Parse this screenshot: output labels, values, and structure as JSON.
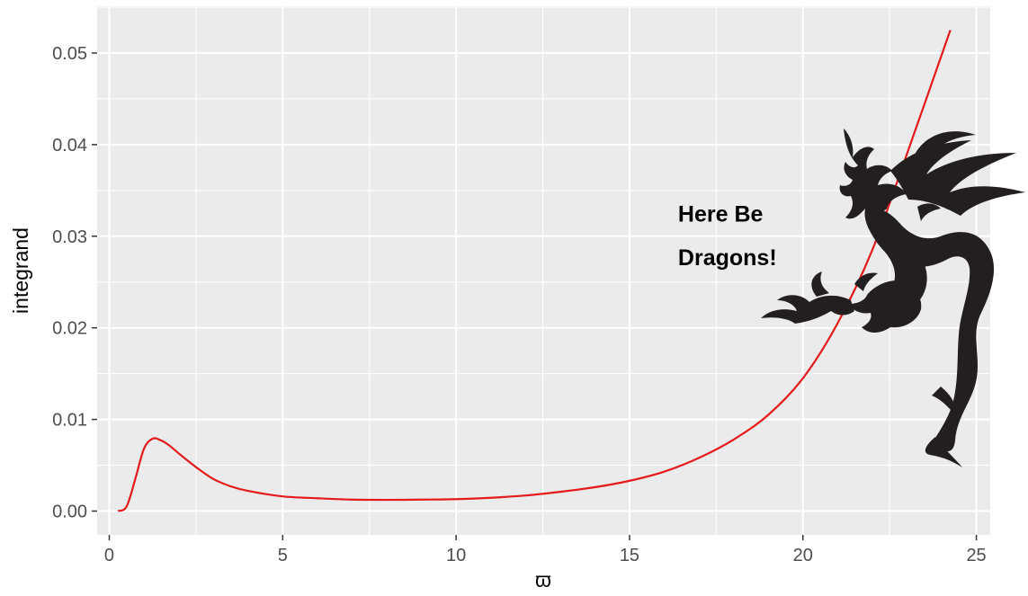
{
  "chart_data": {
    "type": "line",
    "title": "",
    "xlabel": "ϖ",
    "ylabel": "integrand",
    "xlim": [
      -0.35,
      25.4
    ],
    "ylim": [
      -0.0026,
      0.0551
    ],
    "x_ticks": [
      0,
      5,
      10,
      15,
      20,
      25
    ],
    "x_tick_labels": [
      "0",
      "5",
      "10",
      "15",
      "20",
      "25"
    ],
    "y_ticks": [
      0.0,
      0.01,
      0.02,
      0.03,
      0.04,
      0.05
    ],
    "y_tick_labels": [
      "0.00",
      "0.01",
      "0.02",
      "0.03",
      "0.04",
      "0.05"
    ],
    "grid": true,
    "legend": "none",
    "annotation": {
      "lines": [
        "Here Be",
        "Dragons!"
      ],
      "x": 16.4,
      "y": [
        0.0325,
        0.0277
      ]
    },
    "series": [
      {
        "color": "#e41a1c",
        "x": [
          0.25,
          0.5,
          0.75,
          1.0,
          1.25,
          1.5,
          1.75,
          2.0,
          2.5,
          3.0,
          3.5,
          4.0,
          5.0,
          6.0,
          7.0,
          8.0,
          9.0,
          10.0,
          11.0,
          12.0,
          13.0,
          14.0,
          15.0,
          16.0,
          17.0,
          18.0,
          19.0,
          20.0,
          21.0,
          22.0,
          23.0,
          24.25
        ],
        "y": [
          0.0,
          0.0005,
          0.0035,
          0.0068,
          0.0079,
          0.0077,
          0.0071,
          0.0063,
          0.0048,
          0.0035,
          0.0027,
          0.0022,
          0.0016,
          0.0014,
          0.00125,
          0.00122,
          0.00125,
          0.0013,
          0.00145,
          0.0017,
          0.0021,
          0.0026,
          0.0033,
          0.0043,
          0.0058,
          0.0078,
          0.0105,
          0.0145,
          0.0205,
          0.0285,
          0.039,
          0.0525
        ]
      }
    ]
  },
  "decoration": {
    "dragon_icon": "dragon-silhouette",
    "dragon_color": "#231f20"
  }
}
